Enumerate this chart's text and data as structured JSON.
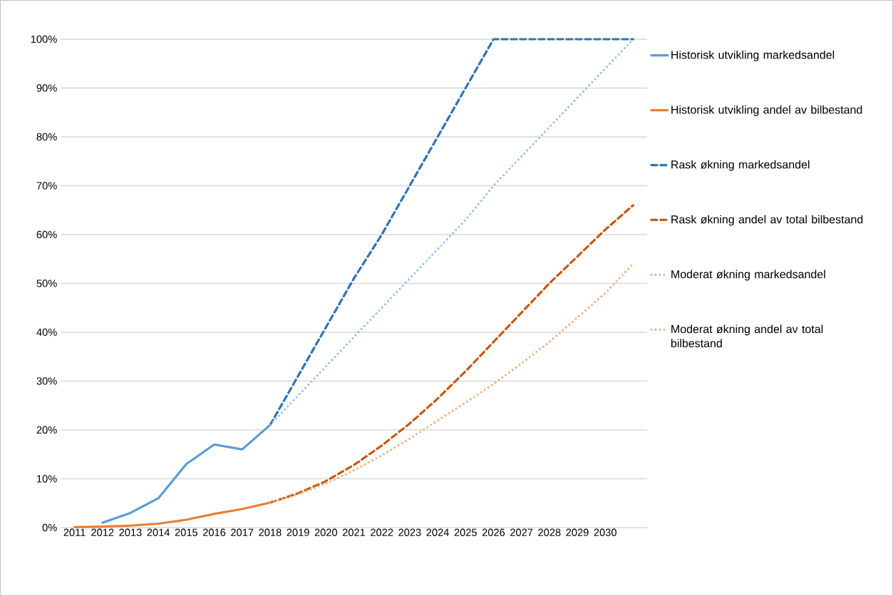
{
  "chart_data": {
    "type": "line",
    "categories": [
      "2011",
      "2012",
      "2013",
      "2014",
      "2015",
      "2016",
      "2017",
      "2018",
      "2019",
      "2020",
      "2021",
      "2022",
      "2023",
      "2024",
      "2025",
      "2026",
      "2027",
      "2028",
      "2029",
      "2030",
      null
    ],
    "ylim": [
      0,
      100
    ],
    "yticks": [
      {
        "value": 0,
        "label": "0%"
      },
      {
        "value": 10,
        "label": "10%"
      },
      {
        "value": 20,
        "label": "20%"
      },
      {
        "value": 30,
        "label": "30%"
      },
      {
        "value": 40,
        "label": "40%"
      },
      {
        "value": 50,
        "label": "50%"
      },
      {
        "value": 60,
        "label": "60%"
      },
      {
        "value": 70,
        "label": "70%"
      },
      {
        "value": 80,
        "label": "80%"
      },
      {
        "value": 90,
        "label": "90%"
      },
      {
        "value": 100,
        "label": "100%"
      }
    ],
    "grid": "y",
    "legend": "right",
    "marker": "none",
    "series": [
      {
        "name": "Historisk utvikling markedsandel",
        "color": "#5b9bd5",
        "line_style": "solid",
        "values": [
          null,
          1,
          3,
          6,
          13,
          17,
          16,
          21,
          null,
          null,
          null,
          null,
          null,
          null,
          null,
          null,
          null,
          null,
          null,
          null,
          null
        ]
      },
      {
        "name": "Historisk utvikling andel av bilbestand",
        "color": "#ed7d31",
        "line_style": "solid",
        "values": [
          0.1,
          0.2,
          0.4,
          0.8,
          1.6,
          2.8,
          3.8,
          5.1,
          null,
          null,
          null,
          null,
          null,
          null,
          null,
          null,
          null,
          null,
          null,
          null,
          null
        ]
      },
      {
        "name": "Rask økning markedsandel",
        "color": "#2e75b6",
        "line_style": "dashed",
        "values": [
          null,
          null,
          null,
          null,
          null,
          null,
          null,
          21,
          31,
          41,
          51,
          60,
          70,
          80,
          90,
          100,
          100,
          100,
          100,
          100,
          100
        ]
      },
      {
        "name": "Rask økning andel av total bilbestand",
        "color": "#c55a11",
        "line_style": "dashed",
        "values": [
          null,
          null,
          null,
          null,
          null,
          null,
          null,
          5.1,
          7,
          9.5,
          12.8,
          16.8,
          21.3,
          26.4,
          32,
          38,
          44,
          50,
          55.5,
          61,
          66
        ]
      },
      {
        "name": "Moderat økning markedsandel",
        "color": "#9dc3e6",
        "line_style": "dotted",
        "values": [
          null,
          null,
          null,
          null,
          null,
          null,
          null,
          21,
          27,
          33,
          39,
          45,
          51,
          57,
          63,
          70,
          76,
          82,
          88,
          94,
          100
        ]
      },
      {
        "name": "Moderat økning andel av total bilbestand",
        "color": "#f4b183",
        "line_style": "dotted",
        "values": [
          null,
          null,
          null,
          null,
          null,
          null,
          null,
          5.1,
          6.8,
          9,
          11.7,
          14.8,
          18.2,
          21.9,
          25.6,
          29.4,
          33.6,
          38,
          43,
          48,
          54
        ]
      }
    ]
  }
}
